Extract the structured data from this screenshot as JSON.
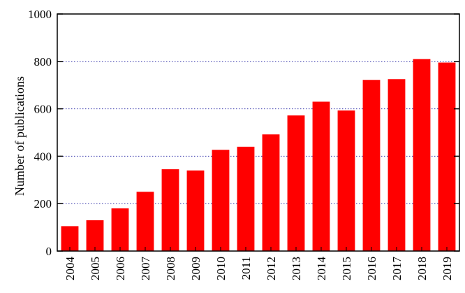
{
  "chart_data": {
    "type": "bar",
    "title": "",
    "xlabel": "",
    "ylabel": "Number of publications",
    "categories": [
      "2004",
      "2005",
      "2006",
      "2007",
      "2008",
      "2009",
      "2010",
      "2011",
      "2012",
      "2013",
      "2014",
      "2015",
      "2016",
      "2017",
      "2018",
      "2019"
    ],
    "values": [
      105,
      130,
      180,
      250,
      345,
      340,
      427,
      440,
      492,
      572,
      630,
      593,
      722,
      725,
      810,
      795
    ],
    "ylim": [
      0,
      1000
    ],
    "yticks": [
      "0",
      "200",
      "400",
      "600",
      "800",
      "1000"
    ],
    "grid": "horizontal dotted",
    "legend": "none",
    "colors": {
      "bar": "#ff0000",
      "grid": "#3333aa",
      "axis": "#000000"
    }
  }
}
